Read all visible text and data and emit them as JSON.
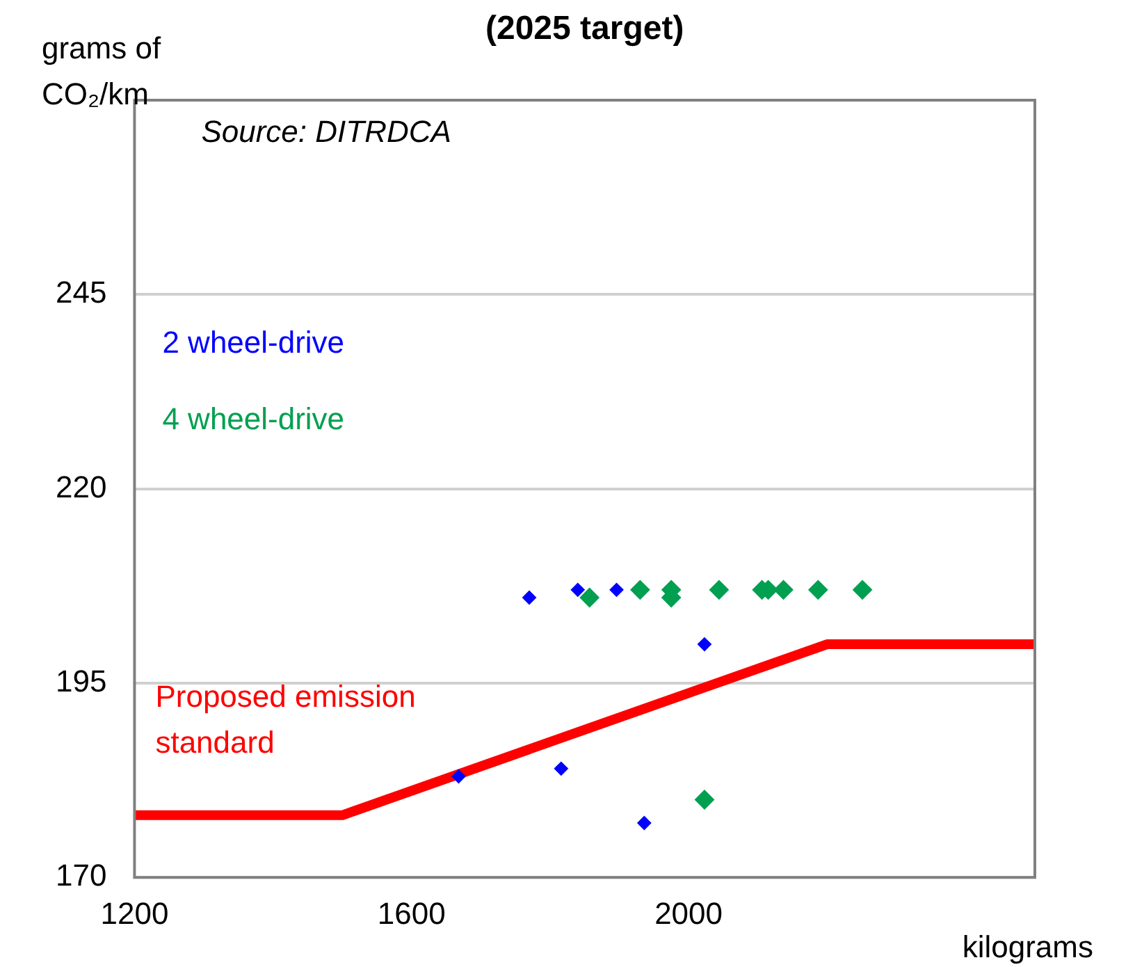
{
  "chart_data": {
    "type": "scatter",
    "title": "(2025 target)",
    "ylabel": "grams of CO₂/km",
    "xlabel": "kilograms",
    "annotations": [
      "Source: DITRDCA"
    ],
    "xlim": [
      1200,
      2500
    ],
    "xticks": [
      1200,
      1600,
      2000
    ],
    "ylim": [
      170,
      270
    ],
    "yticks": [
      170,
      195,
      220,
      245
    ],
    "grid": "y",
    "legend": false,
    "series": [
      {
        "name": "2 wheel-drive",
        "color": "#0000ff",
        "marker": "diamond",
        "x": [
          1770,
          1840,
          1896,
          2023,
          1668,
          1816,
          1936
        ],
        "values": [
          206,
          207,
          207,
          200,
          183,
          184,
          177
        ]
      },
      {
        "name": "4 wheel-drive",
        "color": "#00a050",
        "marker": "diamond",
        "x": [
          1857,
          1930,
          1975,
          1975,
          2044,
          2106,
          2115,
          2137,
          2187,
          2251,
          2023
        ],
        "values": [
          206,
          207,
          207,
          206,
          207,
          207,
          207,
          207,
          207,
          207,
          180
        ]
      },
      {
        "name": "Proposed emission standard",
        "type": "line",
        "marker": "none",
        "color": "#ff0000",
        "x": [
          1200,
          1500,
          2200,
          2500
        ],
        "values": [
          178,
          178,
          200,
          200
        ]
      }
    ]
  }
}
